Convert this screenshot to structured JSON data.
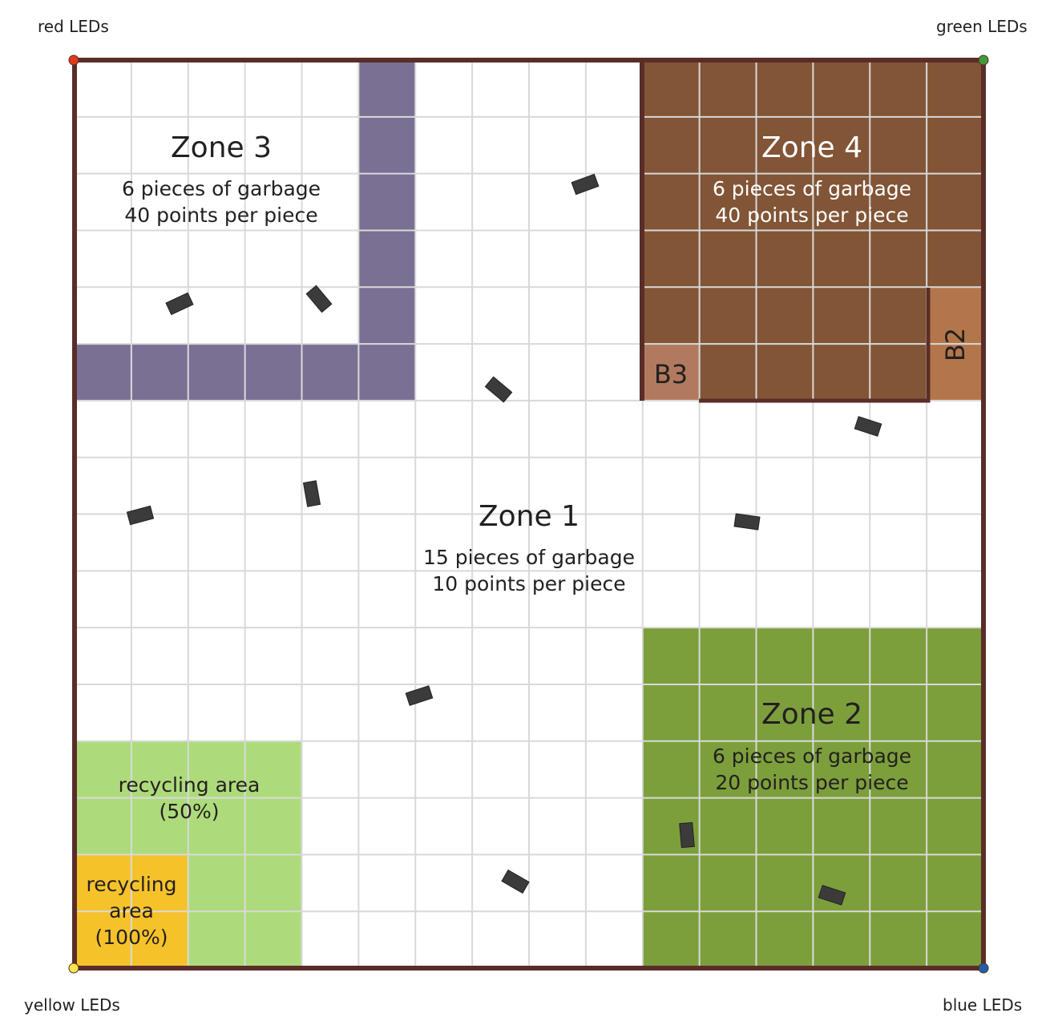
{
  "corners": {
    "red": {
      "label": "red LEDs",
      "color": "#e1391c"
    },
    "green": {
      "label": "green LEDs",
      "color": "#3f9b3a"
    },
    "yellow": {
      "label": "yellow LEDs",
      "color": "#f3e84b"
    },
    "blue": {
      "label": "blue LEDs",
      "color": "#1f5fa8"
    }
  },
  "zones": {
    "zone1": {
      "title": "Zone 1",
      "pieces": "15 pieces of garbage",
      "points": "10 points per piece"
    },
    "zone2": {
      "title": "Zone 2",
      "pieces": "6 pieces of garbage",
      "points": "20 points per piece",
      "color": "#7c9f3b"
    },
    "zone3": {
      "title": "Zone 3",
      "pieces": "6 pieces of garbage",
      "points": "40 points per piece",
      "border_color": "#7a7094"
    },
    "zone4": {
      "title": "Zone 4",
      "pieces": "6 pieces of garbage",
      "points": "40 points per piece",
      "color": "#815536"
    }
  },
  "boxes": {
    "b2": {
      "label": "B2",
      "color": "#b3764b"
    },
    "b3": {
      "label": "B3",
      "color": "#b17a5f"
    }
  },
  "recycling": {
    "half": {
      "line1": "recycling area",
      "line2": "(50%)",
      "color": "#addb7b"
    },
    "full": {
      "line1": "recycling",
      "line2": "area",
      "line3": "(100%)",
      "color": "#f6c22a"
    }
  },
  "colors": {
    "frame": "#5a2d28",
    "grid": "#d9d9d9",
    "garbage": "#3b3b3b"
  }
}
